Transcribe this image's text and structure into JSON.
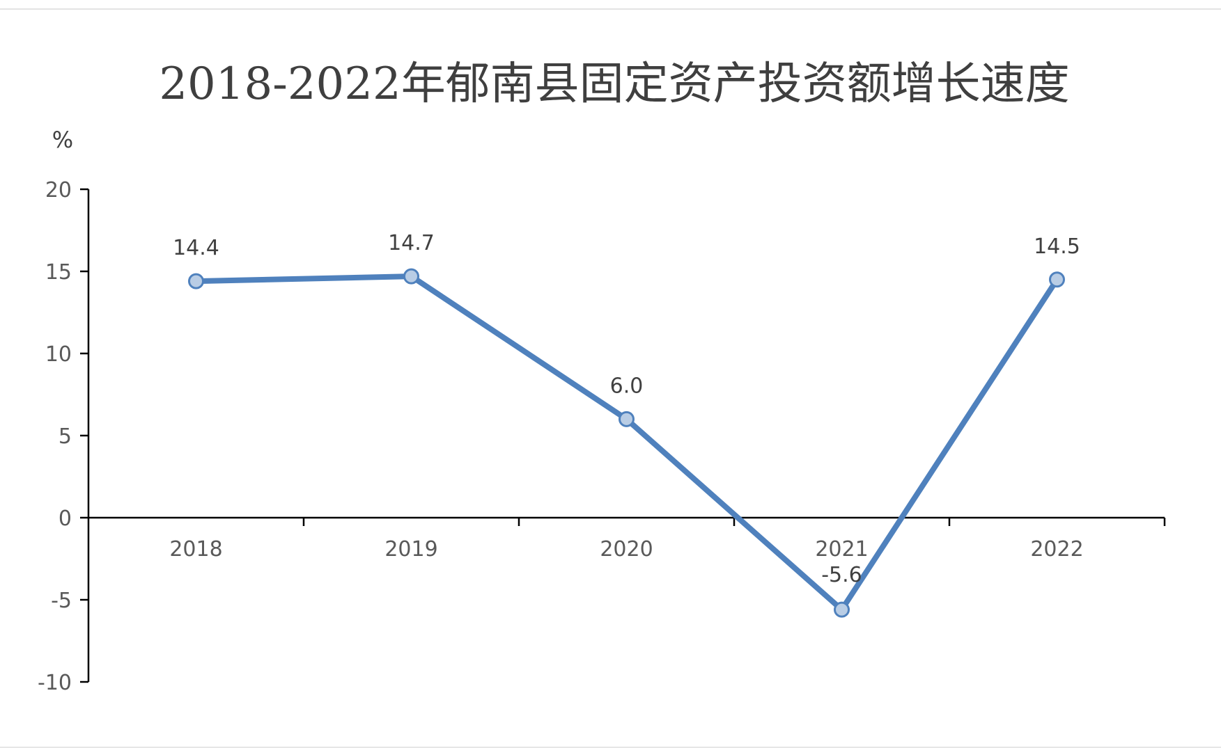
{
  "chart_data": {
    "type": "line",
    "title": "2018-2022年郁南县固定资产投资额增长速度",
    "ylabel": "%",
    "xlabel": "",
    "categories": [
      "2018",
      "2019",
      "2020",
      "2021",
      "2022"
    ],
    "series": [
      {
        "values": [
          14.4,
          14.7,
          6.0,
          -5.6,
          14.5
        ],
        "labels": [
          "14.4",
          "14.7",
          "6.0",
          "-5.6",
          "14.5"
        ]
      }
    ],
    "ylim": [
      -10,
      20
    ],
    "yticks": [
      "20",
      "15",
      "10",
      "5",
      "0",
      "-5",
      "-10"
    ],
    "grid": false,
    "legend": "none",
    "colors": {
      "line": "#4f81bd",
      "marker_fill": "#b9cde5",
      "axis": "#000000"
    }
  }
}
